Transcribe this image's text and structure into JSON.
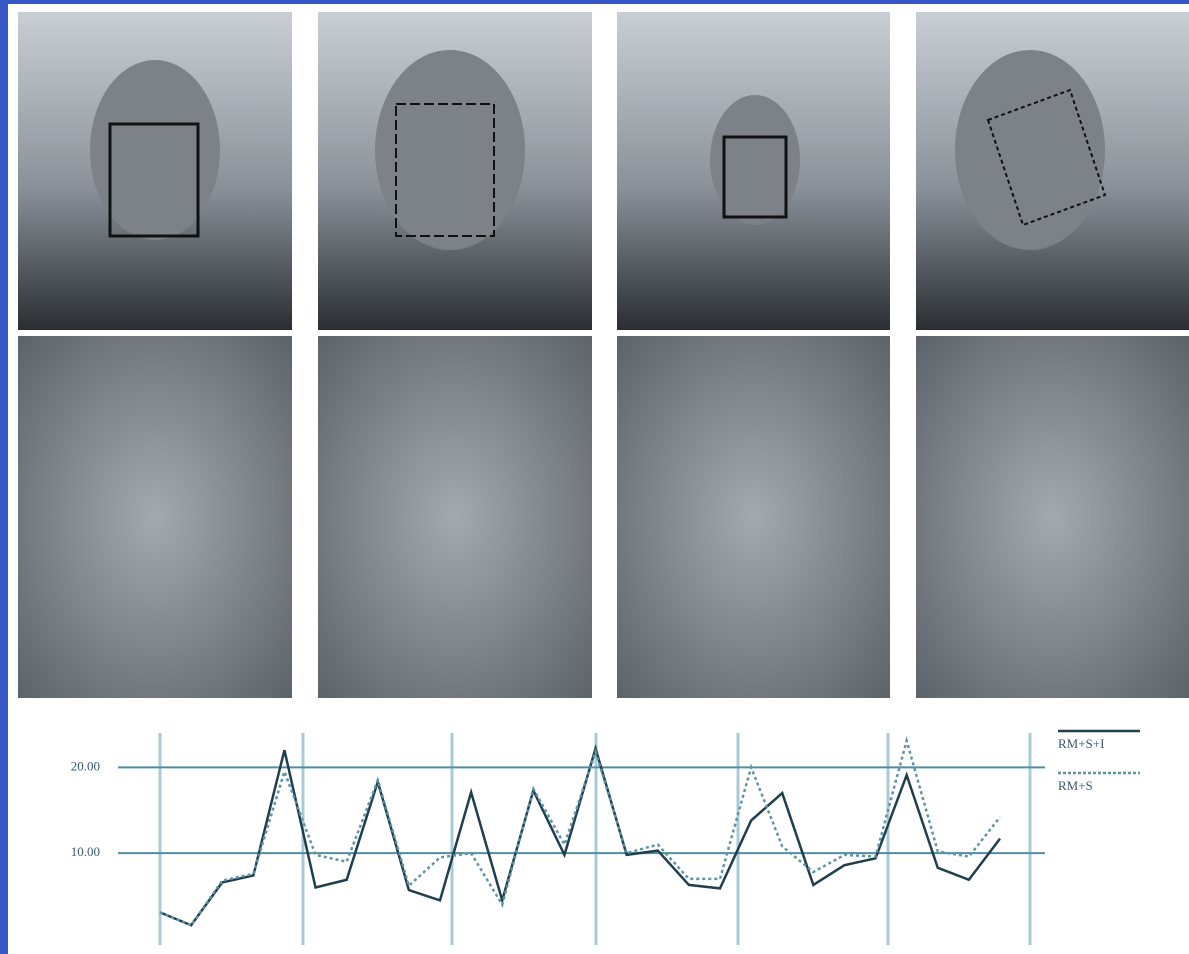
{
  "chart_data": {
    "type": "line",
    "ylim": [
      0,
      24
    ],
    "yticks": [
      {
        "value": 20,
        "label": "20.00"
      },
      {
        "value": 10,
        "label": "10.00"
      }
    ],
    "grid": true,
    "legend": "top-right",
    "series": [
      {
        "name": "RM+S+I",
        "color": "#1f3f4f",
        "dash": false,
        "values": [
          3.1,
          1.6,
          6.6,
          7.4,
          22.0,
          6.0,
          6.9,
          18.3,
          5.7,
          4.5,
          17.1,
          4.5,
          17.3,
          9.8,
          22.2,
          9.8,
          10.3,
          6.3,
          5.9,
          13.8,
          17.0,
          6.3,
          8.6,
          9.4,
          19.1,
          8.3,
          6.9,
          11.7
        ]
      },
      {
        "name": "RM+S",
        "color": "#5f93a6",
        "dash": true,
        "values": [
          3.1,
          1.6,
          6.8,
          7.6,
          19.5,
          9.8,
          9.0,
          18.5,
          6.2,
          9.5,
          10.0,
          4.0,
          17.5,
          11.0,
          21.8,
          10.0,
          11.0,
          7.0,
          7.0,
          20.0,
          10.8,
          7.8,
          9.8,
          9.6,
          23.1,
          10.2,
          9.6,
          14.2
        ]
      }
    ]
  }
}
